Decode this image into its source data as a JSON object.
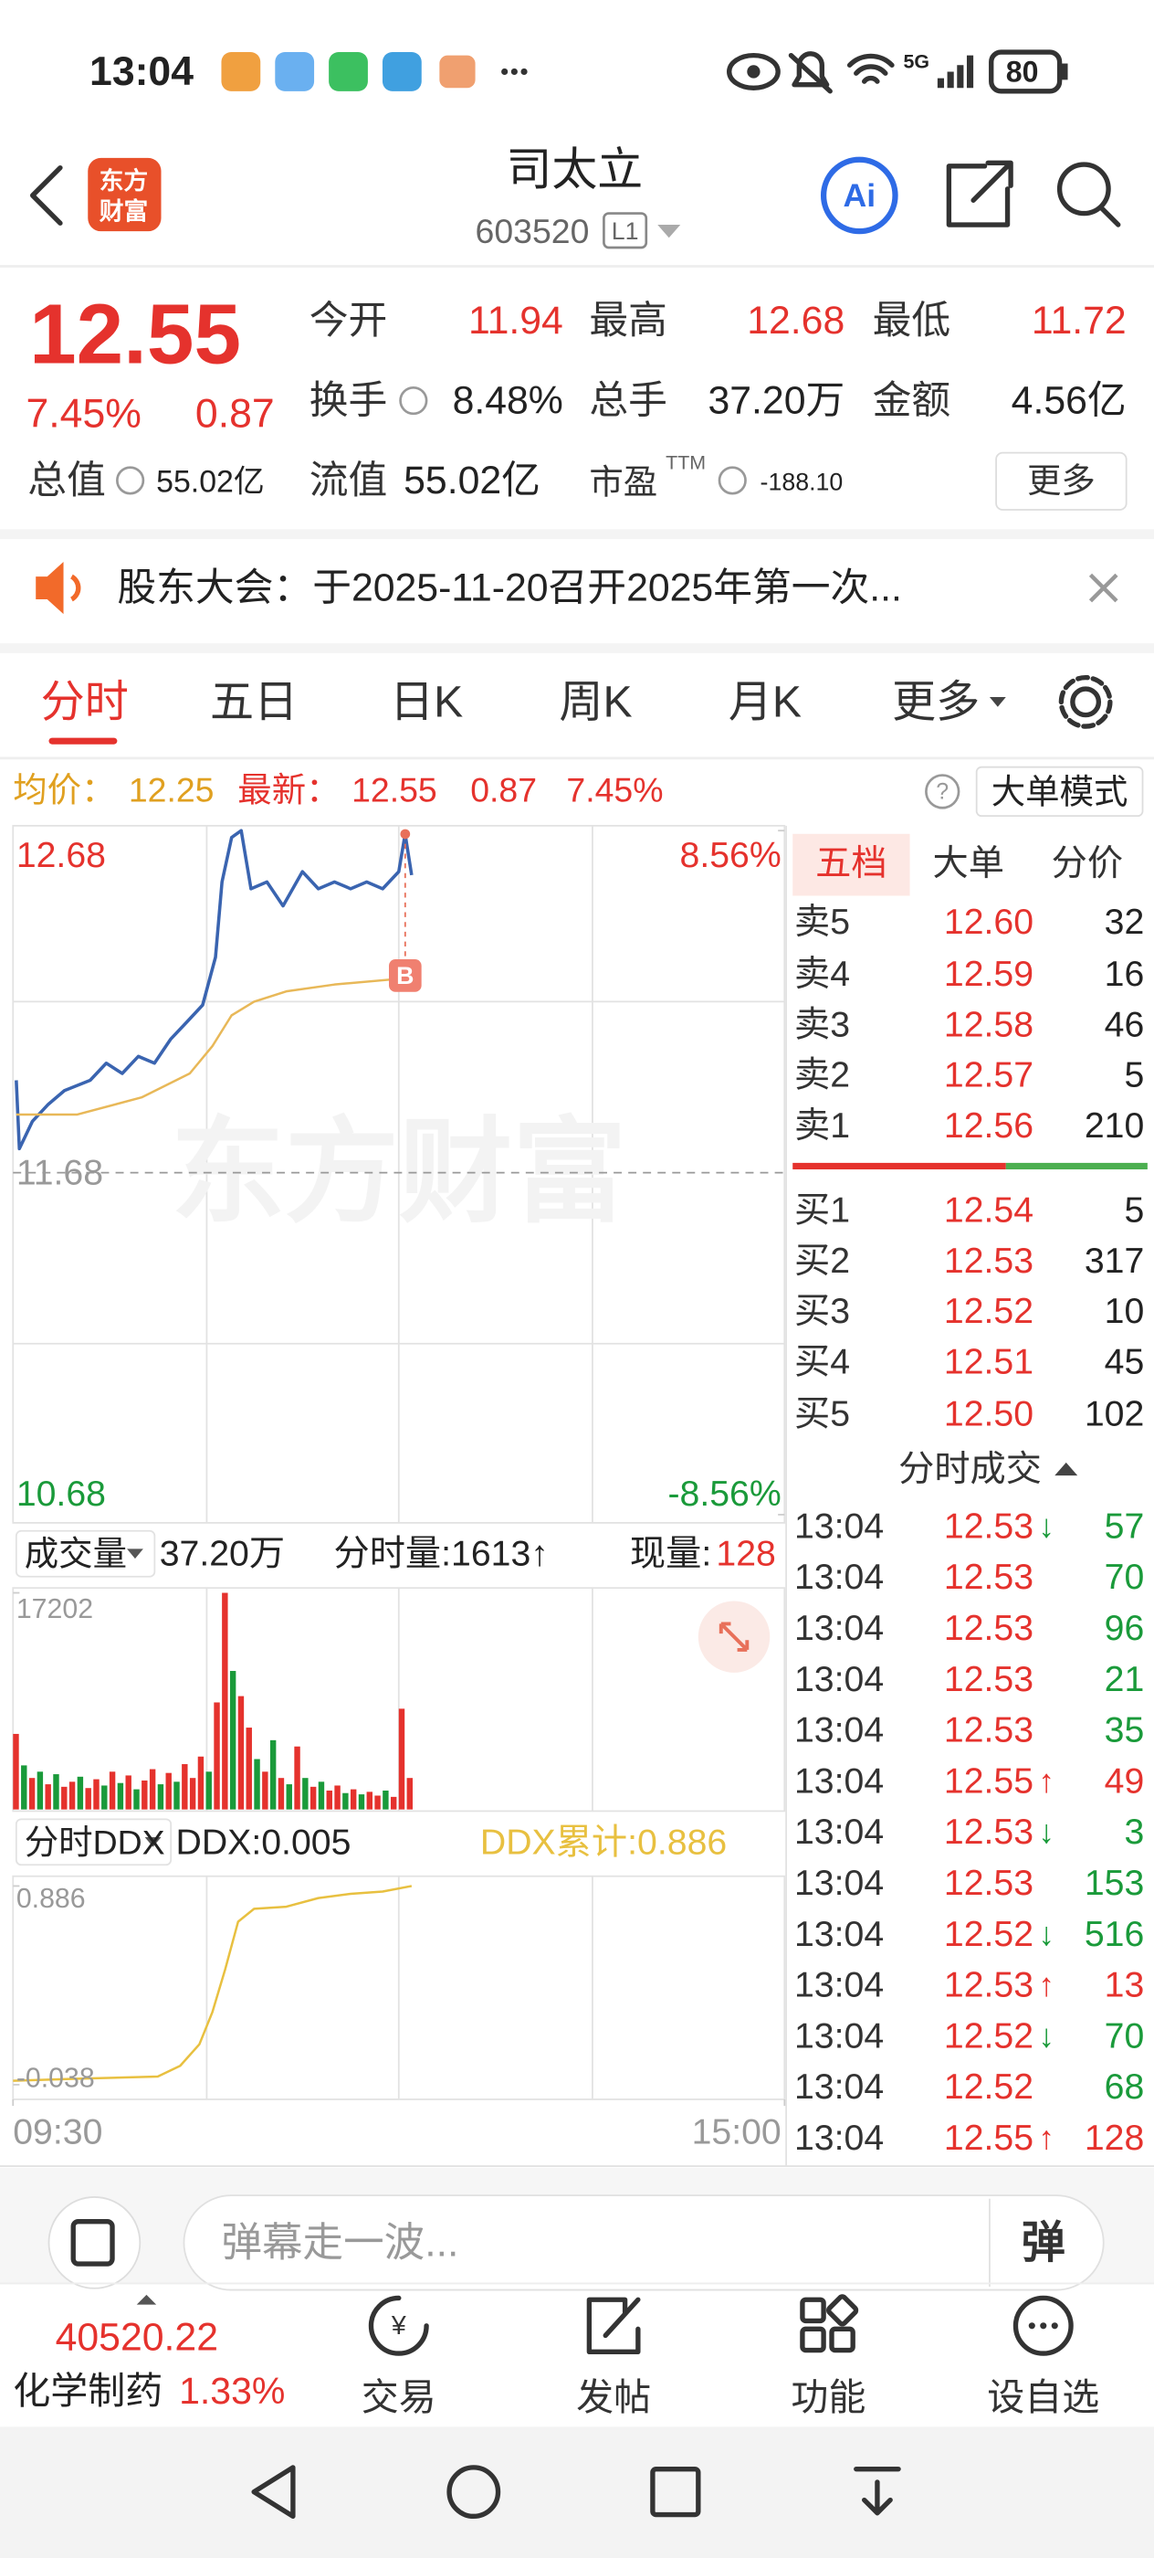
{
  "status_bar": {
    "time": "13:04",
    "network": "5G",
    "battery": "80"
  },
  "header": {
    "logo": [
      "东方",
      "财富"
    ],
    "title": "司太立",
    "code": "603520",
    "level": "L1"
  },
  "quote": {
    "price": "12.55",
    "change_pct": "7.45%",
    "change": "0.87",
    "color": "#e5322d",
    "fields": [
      {
        "label": "今开",
        "value": "11.94",
        "color": "#e5322d"
      },
      {
        "label": "最高",
        "value": "12.68",
        "color": "#e5322d"
      },
      {
        "label": "最低",
        "value": "11.72",
        "color": "#e5322d"
      },
      {
        "label": "换手",
        "value": "8.48%",
        "color": "#222222"
      },
      {
        "label": "总手",
        "value": "37.20万",
        "color": "#222222"
      },
      {
        "label": "金额",
        "value": "4.56亿",
        "color": "#222222"
      },
      {
        "label": "总值",
        "value": "55.02亿",
        "color": "#222222"
      },
      {
        "label": "流值",
        "value": "55.02亿",
        "color": "#222222"
      },
      {
        "label": "市盈",
        "sup": "TTM",
        "value": "-188.10",
        "color": "#222222"
      }
    ],
    "more": "更多"
  },
  "notice": "股东大会：于2025-11-20召开2025年第一次...",
  "tabs": [
    "分时",
    "五日",
    "日K",
    "周K",
    "月K",
    "更多"
  ],
  "info_line": {
    "avg_label": "均价：",
    "avg": "12.25",
    "latest_label": "最新：",
    "latest": "12.55",
    "change": "0.87",
    "change_pct": "7.45%"
  },
  "mode_button": "大单模式",
  "chart_data": [
    {
      "type": "line",
      "watermark": "东方财富",
      "annotation": "B",
      "xlim": [
        0,
        240
      ],
      "ylim": [
        10.68,
        12.68
      ],
      "yticks": [
        12.68,
        11.68,
        10.68
      ],
      "y2lim": [
        -8.56,
        8.56
      ],
      "y2ticks": [
        {
          "value": 8.56,
          "label": "8.56%"
        },
        {
          "value": -8.56,
          "label": "-8.56%"
        }
      ],
      "up_color": "#e5322d",
      "down_color": "#1a9a3a",
      "flat_color": "#999999",
      "series": [
        {
          "color": "#3a64b0",
          "x": [
            1,
            2,
            6,
            11,
            16,
            24,
            29,
            34,
            39,
            44,
            49,
            54,
            59,
            63,
            65,
            68,
            71,
            74,
            79,
            84,
            90,
            95,
            100,
            105,
            110,
            115,
            120,
            122,
            124
          ],
          "values": [
            11.95,
            11.75,
            11.83,
            11.88,
            11.92,
            11.95,
            12.0,
            11.97,
            12.02,
            12.0,
            12.07,
            12.12,
            12.17,
            12.31,
            12.53,
            12.66,
            12.68,
            12.51,
            12.53,
            12.46,
            12.56,
            12.51,
            12.53,
            12.51,
            12.53,
            12.51,
            12.56,
            12.67,
            12.55
          ]
        },
        {
          "color": "#e8b858",
          "x": [
            1,
            20,
            40,
            55,
            62,
            68,
            75,
            85,
            100,
            124
          ],
          "values": [
            11.85,
            11.85,
            11.9,
            11.97,
            12.05,
            12.14,
            12.18,
            12.21,
            12.23,
            12.25
          ]
        }
      ]
    },
    {
      "type": "bar",
      "header": {
        "selector": "成交量",
        "total": "37.20万",
        "minute_volume": "分时量:1613↑",
        "current_label": "现量:",
        "current": "128"
      },
      "xlim": [
        0,
        240
      ],
      "ylim": [
        0,
        17202
      ],
      "yticks": [
        17202
      ],
      "up_color": "#e5322d",
      "down_color": "#1a9a3a",
      "x": [
        0,
        2.5,
        5,
        7.5,
        10,
        12.5,
        15,
        17.5,
        20,
        22.5,
        25,
        27.5,
        30,
        32.5,
        35,
        37.5,
        40,
        42.5,
        45,
        47.5,
        50,
        52.5,
        55,
        57.5,
        60,
        62.5,
        65,
        67.5,
        70,
        72.5,
        75,
        77.5,
        80,
        82.5,
        85,
        87.5,
        90,
        92.5,
        95,
        97.5,
        100,
        102.5,
        105,
        107.5,
        110,
        112.5,
        115,
        117.5,
        120,
        122.5
      ],
      "values": [
        6000,
        3500,
        2500,
        3000,
        2000,
        2800,
        1800,
        2200,
        2600,
        1700,
        2400,
        1900,
        3000,
        2100,
        2700,
        1600,
        2300,
        3200,
        2000,
        2900,
        2200,
        3600,
        2500,
        4200,
        3000,
        8500,
        17202,
        11000,
        9000,
        6500,
        4000,
        3000,
        5500,
        2500,
        2000,
        5000,
        2500,
        1800,
        2200,
        1500,
        1900,
        1300,
        1600,
        1200,
        1400,
        1100,
        1500,
        1000,
        8000,
        2500
      ],
      "directions": [
        "up",
        "down",
        "up",
        "down",
        "up",
        "down",
        "up",
        "up",
        "down",
        "up",
        "up",
        "down",
        "up",
        "down",
        "up",
        "down",
        "up",
        "up",
        "down",
        "up",
        "down",
        "up",
        "up",
        "up",
        "down",
        "up",
        "up",
        "down",
        "up",
        "up",
        "down",
        "up",
        "down",
        "up",
        "down",
        "up",
        "down",
        "up",
        "down",
        "up",
        "up",
        "down",
        "up",
        "down",
        "up",
        "up",
        "down",
        "up",
        "up",
        "up"
      ]
    },
    {
      "type": "line",
      "header": {
        "selector": "分时DDX",
        "ddx": "DDX:0.005",
        "ddx_total": "DDX累计:0.886"
      },
      "xlim": [
        0,
        240
      ],
      "ylim": [
        -0.038,
        0.886
      ],
      "yticks": [
        0.886,
        -0.038
      ],
      "xticks": [
        {
          "value": 0,
          "label": "09:30"
        },
        {
          "value": 240,
          "label": "15:00"
        }
      ],
      "series": [
        {
          "color": "#e8c040",
          "x": [
            0,
            20,
            45,
            52,
            58,
            62,
            66,
            70,
            75,
            85,
            95,
            105,
            115,
            124
          ],
          "values": [
            -0.02,
            -0.01,
            0.0,
            0.05,
            0.15,
            0.3,
            0.5,
            0.72,
            0.78,
            0.79,
            0.83,
            0.85,
            0.86,
            0.886
          ]
        }
      ]
    }
  ],
  "order_book": {
    "tabs": [
      "五档",
      "大单",
      "分价"
    ],
    "price_color": "#e5322d",
    "asks": [
      {
        "label": "卖5",
        "price": "12.60",
        "volume": "32"
      },
      {
        "label": "卖4",
        "price": "12.59",
        "volume": "16"
      },
      {
        "label": "卖3",
        "price": "12.58",
        "volume": "46"
      },
      {
        "label": "卖2",
        "price": "12.57",
        "volume": "5"
      },
      {
        "label": "卖1",
        "price": "12.56",
        "volume": "210"
      }
    ],
    "bids": [
      {
        "label": "买1",
        "price": "12.54",
        "volume": "5"
      },
      {
        "label": "买2",
        "price": "12.53",
        "volume": "317"
      },
      {
        "label": "买3",
        "price": "12.52",
        "volume": "10"
      },
      {
        "label": "买4",
        "price": "12.51",
        "volume": "45"
      },
      {
        "label": "买5",
        "price": "12.50",
        "volume": "102"
      }
    ]
  },
  "trades": {
    "title": "分时成交",
    "price_color": "#e5322d",
    "buy_color": "#e5322d",
    "sell_color": "#1a9a3a",
    "rows": [
      {
        "time": "13:04",
        "price": "12.53",
        "dir": "↓",
        "volume": "57",
        "side": "sell"
      },
      {
        "time": "13:04",
        "price": "12.53",
        "volume": "70",
        "side": "sell"
      },
      {
        "time": "13:04",
        "price": "12.53",
        "volume": "96",
        "side": "sell"
      },
      {
        "time": "13:04",
        "price": "12.53",
        "volume": "21",
        "side": "sell"
      },
      {
        "time": "13:04",
        "price": "12.53",
        "volume": "35",
        "side": "sell"
      },
      {
        "time": "13:04",
        "price": "12.55",
        "dir": "↑",
        "volume": "49",
        "side": "buy"
      },
      {
        "time": "13:04",
        "price": "12.53",
        "dir": "↓",
        "volume": "3",
        "side": "sell"
      },
      {
        "time": "13:04",
        "price": "12.53",
        "volume": "153",
        "side": "sell"
      },
      {
        "time": "13:04",
        "price": "12.52",
        "dir": "↓",
        "volume": "516",
        "side": "sell"
      },
      {
        "time": "13:04",
        "price": "12.53",
        "dir": "↑",
        "volume": "13",
        "side": "buy"
      },
      {
        "time": "13:04",
        "price": "12.52",
        "dir": "↓",
        "volume": "70",
        "side": "sell"
      },
      {
        "time": "13:04",
        "price": "12.52",
        "volume": "68",
        "side": "sell"
      },
      {
        "time": "13:04",
        "price": "12.55",
        "dir": "↑",
        "volume": "128",
        "side": "buy"
      }
    ]
  },
  "comment": {
    "placeholder": "弹幕走一波...",
    "button": "弹"
  },
  "bottom_bar": {
    "index_value": "40520.22",
    "sector": "化学制药",
    "sector_change": "1.33%",
    "items": [
      "交易",
      "发帖",
      "功能",
      "设自选"
    ]
  }
}
